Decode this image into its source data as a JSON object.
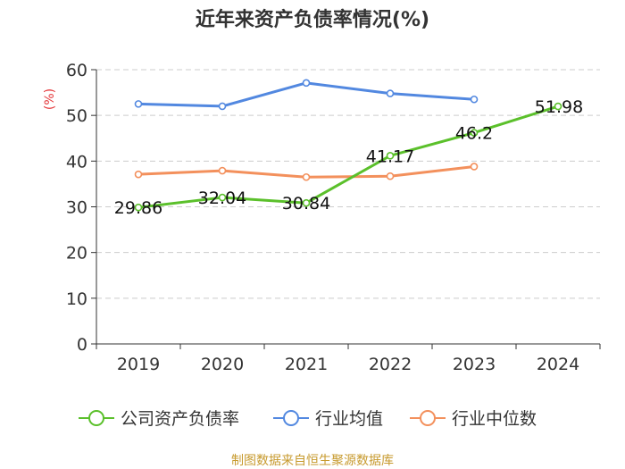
{
  "chart_data": {
    "type": "line",
    "title": "近年来资产负债率情况(%)",
    "ylabel": "(%)",
    "xlabel": "",
    "categories": [
      "2019",
      "2020",
      "2021",
      "2022",
      "2023",
      "2024"
    ],
    "ylim": [
      0,
      60
    ],
    "yticks": [
      0,
      10,
      20,
      30,
      40,
      50,
      60
    ],
    "grid": true,
    "legend_position": "bottom",
    "series": [
      {
        "name": "公司资产负债率",
        "color": "#5bc02b",
        "values": [
          29.86,
          32.04,
          30.84,
          41.17,
          46.2,
          51.98
        ],
        "labels": [
          "29.86",
          "32.04",
          "30.84",
          "41.17",
          "46.2",
          "51.98"
        ]
      },
      {
        "name": "行业均值",
        "color": "#5288e0",
        "values": [
          52.5,
          52.0,
          57.1,
          54.8,
          53.5,
          null
        ]
      },
      {
        "name": "行业中位数",
        "color": "#f3905c",
        "values": [
          37.1,
          37.9,
          36.5,
          36.7,
          38.8,
          null
        ]
      }
    ]
  },
  "footer": {
    "source": "制图数据来自恒生聚源数据库"
  }
}
